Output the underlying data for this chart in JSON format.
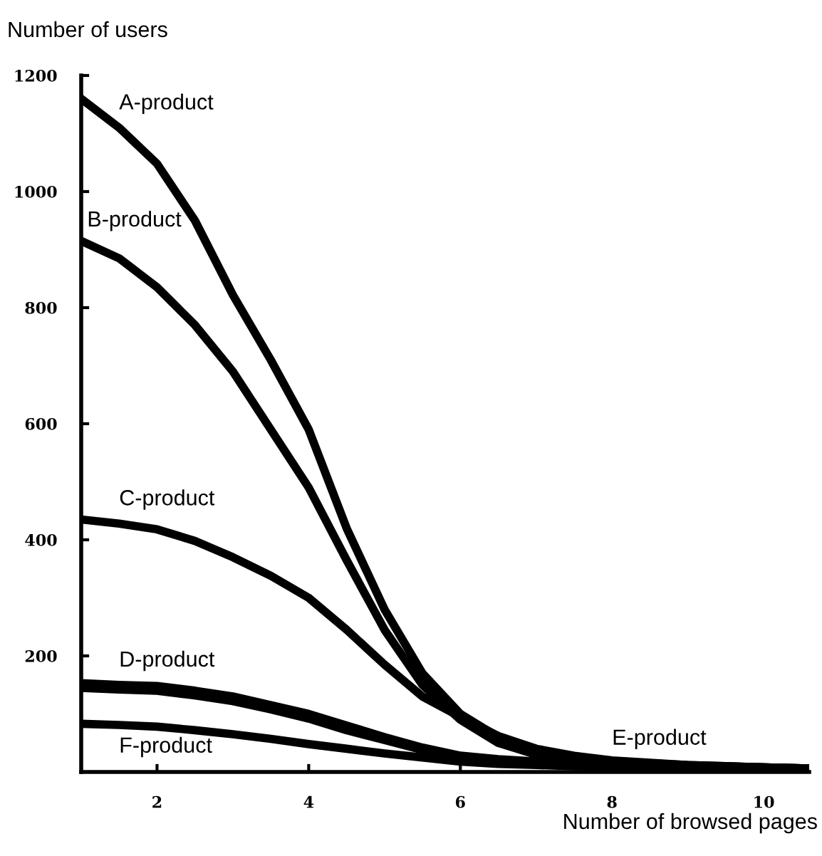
{
  "chart_data": {
    "type": "line",
    "ylabel": "Number of users",
    "xlabel": "Number of browsed pages",
    "xlim": [
      1,
      10.6
    ],
    "xticks": [
      2,
      4,
      6,
      8,
      10
    ],
    "ylim": [
      0,
      1200
    ],
    "yticks": [
      200,
      400,
      600,
      800,
      1000,
      1200
    ],
    "grid": false,
    "legend": false,
    "marker": "none",
    "line_style": "solid",
    "x": [
      1,
      1.5,
      2,
      2.5,
      3,
      3.5,
      4,
      4.5,
      5,
      5.5,
      6,
      6.5,
      7,
      7.5,
      8,
      9,
      10,
      10.6
    ],
    "series": [
      {
        "name": "A-product",
        "color": "#000000",
        "values": [
          1160,
          1110,
          1048,
          950,
          822,
          710,
          590,
          420,
          280,
          170,
          100,
          60,
          38,
          25,
          18,
          12,
          8,
          6
        ]
      },
      {
        "name": "B-product",
        "color": "#000000",
        "values": [
          915,
          885,
          835,
          770,
          690,
          590,
          490,
          365,
          245,
          150,
          90,
          50,
          30,
          22,
          16,
          11,
          8,
          6
        ]
      },
      {
        "name": "C-product",
        "color": "#000000",
        "values": [
          435,
          428,
          418,
          398,
          370,
          338,
          300,
          245,
          185,
          130,
          95,
          62,
          40,
          28,
          20,
          12,
          8,
          6
        ]
      },
      {
        "name": "D-product",
        "color": "#000000",
        "values": [
          153,
          150,
          148,
          140,
          130,
          115,
          100,
          80,
          60,
          42,
          28,
          22,
          18,
          15,
          13,
          10,
          8,
          6
        ]
      },
      {
        "name": "E-product",
        "color": "#000000",
        "values": [
          145,
          142,
          140,
          132,
          122,
          108,
          92,
          72,
          55,
          38,
          25,
          19,
          16,
          14,
          12,
          9,
          7,
          5
        ]
      },
      {
        "name": "F-product",
        "color": "#000000",
        "values": [
          83,
          81,
          78,
          72,
          65,
          57,
          48,
          40,
          32,
          25,
          18,
          14,
          12,
          10,
          9,
          7,
          6,
          5
        ]
      }
    ]
  }
}
